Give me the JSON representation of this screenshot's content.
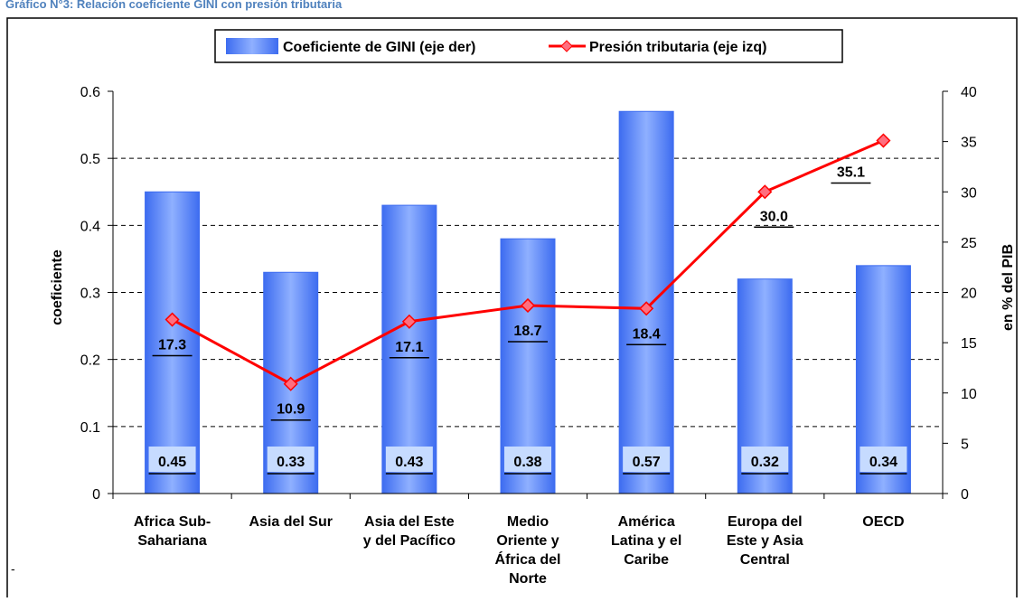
{
  "chart_data": {
    "type": "bar_line",
    "title": "Gráfico N°3: Relación coeficiente GINI con presión tributaria",
    "categories": [
      "Africa Sub-\nSahariana",
      "Asia del Sur",
      "Asia del Este\ny del Pacífico",
      "Medio\nOriente y\nÁfrica del\nNorte",
      "América\nLatina y el\nCaribe",
      "Europa del\nEste y Asia\nCentral",
      "OECD"
    ],
    "series": [
      {
        "name": "Coeficiente de GINI (eje der)",
        "color": "#4f7df5",
        "values": [
          0.45,
          0.33,
          0.43,
          0.38,
          0.57,
          0.32,
          0.34
        ]
      },
      {
        "name": "Presión tributaria (eje izq)",
        "color": "#ff0000",
        "axis": "y2",
        "values": [
          17.3,
          10.9,
          17.1,
          18.7,
          18.4,
          30.0,
          35.1
        ],
        "value_labels": [
          "17.3",
          "10.9",
          "17.1",
          "18.7",
          "18.4",
          "30.0",
          "35.1"
        ]
      }
    ],
    "ylabel": "coeficiente",
    "y2label": "en % del PIB",
    "ylim": [
      0,
      0.6
    ],
    "yticks": [
      0,
      0.1,
      0.2,
      0.3,
      0.4,
      0.5,
      0.6
    ],
    "y2lim": [
      0,
      40
    ],
    "y2ticks": [
      0,
      5,
      10,
      15,
      20,
      25,
      30,
      35,
      40
    ],
    "grid": true,
    "footnote": "-"
  }
}
